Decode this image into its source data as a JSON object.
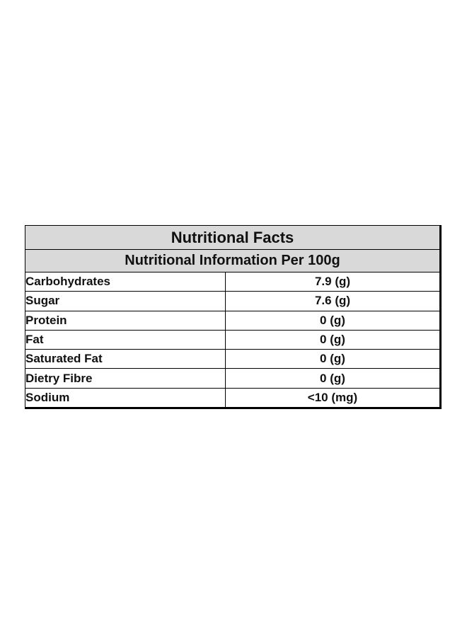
{
  "table": {
    "title": "Nutritional Facts",
    "subtitle": "Nutritional Information Per 100g",
    "rows": [
      [
        "Carbohydrates",
        "7.9 (g)"
      ],
      [
        "Sugar",
        "7.6 (g)"
      ],
      [
        "Protein",
        "0 (g)"
      ],
      [
        "Fat",
        "0 (g)"
      ],
      [
        "Saturated Fat",
        "0 (g)"
      ],
      [
        "Dietry Fibre",
        "0 (g)"
      ],
      [
        "Sodium",
        "<10 (mg)"
      ]
    ]
  }
}
